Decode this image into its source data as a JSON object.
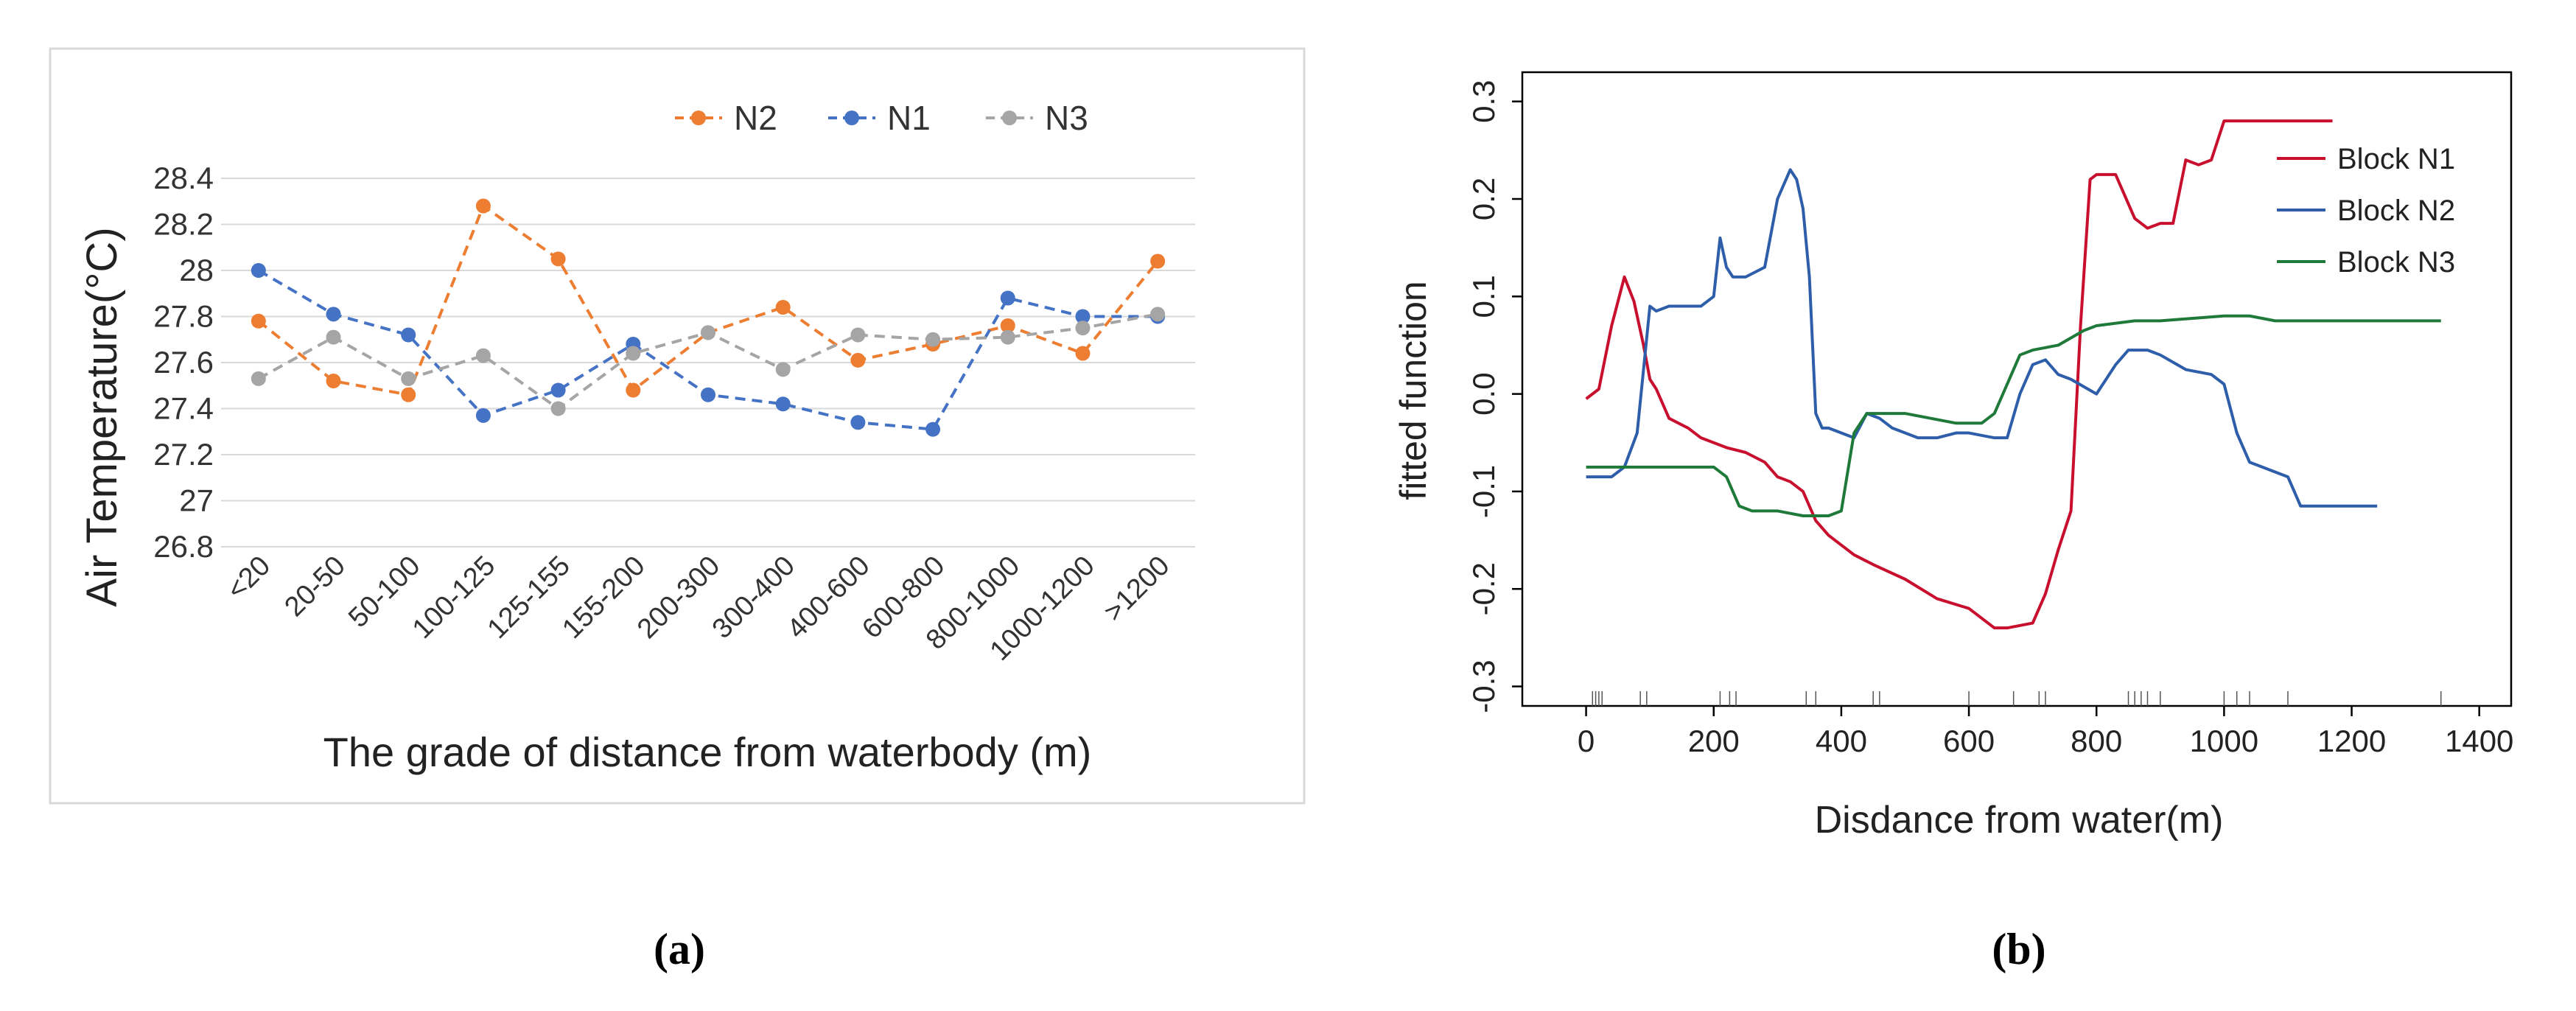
{
  "chart_data": [
    {
      "type": "line",
      "panel_label": "(a)",
      "title": "",
      "xlabel": "The grade of distance from waterbody (m)",
      "ylabel": "Air Temperature(°C)",
      "categories": [
        "<20",
        "20-50",
        "50-100",
        "100-125",
        "125-155",
        "155-200",
        "200-300",
        "300-400",
        "400-600",
        "600-800",
        "800-1000",
        "1000-1200",
        ">1200"
      ],
      "ylim": [
        26.8,
        28.4
      ],
      "yticks": [
        "26.8",
        "27",
        "27.2",
        "27.4",
        "27.6",
        "27.8",
        "28",
        "28.2",
        "28.4"
      ],
      "grid": true,
      "legend_position": "top-right",
      "series": [
        {
          "name": "N2",
          "color": "#ED7D31",
          "values": [
            27.78,
            27.52,
            27.46,
            28.28,
            28.05,
            27.48,
            27.73,
            27.84,
            27.61,
            27.68,
            27.76,
            27.64,
            28.04
          ]
        },
        {
          "name": "N1",
          "color": "#4472C4",
          "values": [
            28.0,
            27.81,
            27.72,
            27.37,
            27.48,
            27.68,
            27.46,
            27.42,
            27.34,
            27.31,
            27.88,
            27.8,
            27.8
          ]
        },
        {
          "name": "N3",
          "color": "#A5A5A5",
          "values": [
            27.53,
            27.71,
            27.53,
            27.63,
            27.4,
            27.64,
            27.73,
            27.57,
            27.72,
            27.7,
            27.71,
            27.75,
            27.81
          ]
        }
      ]
    },
    {
      "type": "line",
      "panel_label": "(b)",
      "title": "",
      "xlabel": "Disdance from water(m)",
      "ylabel": "fitted function",
      "xlim": [
        -100,
        1450
      ],
      "ylim": [
        -0.32,
        0.33
      ],
      "xticks": [
        "0",
        "200",
        "400",
        "600",
        "800",
        "1000",
        "1200",
        "1400"
      ],
      "yticks": [
        "-0.3",
        "-0.2",
        "-0.1",
        "0.0",
        "0.1",
        "0.2",
        "0.3"
      ],
      "legend_position": "top-right",
      "rug_x": [
        10,
        15,
        20,
        25,
        85,
        95,
        210,
        225,
        235,
        345,
        360,
        450,
        460,
        600,
        670,
        710,
        720,
        850,
        860,
        870,
        880,
        900,
        1000,
        1020,
        1040,
        1100,
        1340
      ],
      "series": [
        {
          "name": "Block N1",
          "color": "#C8102E",
          "x": [
            0,
            20,
            40,
            60,
            75,
            90,
            100,
            110,
            130,
            160,
            180,
            200,
            220,
            250,
            280,
            300,
            320,
            340,
            360,
            380,
            400,
            420,
            450,
            500,
            550,
            600,
            640,
            660,
            700,
            720,
            740,
            760,
            775,
            790,
            800,
            830,
            860,
            880,
            900,
            920,
            940,
            960,
            980,
            1000,
            1010,
            1020,
            1100,
            1170
          ],
          "y": [
            -0.005,
            0.005,
            0.07,
            0.12,
            0.095,
            0.05,
            0.015,
            0.005,
            -0.025,
            -0.035,
            -0.045,
            -0.05,
            -0.055,
            -0.06,
            -0.07,
            -0.085,
            -0.09,
            -0.1,
            -0.13,
            -0.145,
            -0.155,
            -0.165,
            -0.175,
            -0.19,
            -0.21,
            -0.22,
            -0.24,
            -0.24,
            -0.235,
            -0.205,
            -0.16,
            -0.12,
            0.07,
            0.22,
            0.225,
            0.225,
            0.18,
            0.17,
            0.175,
            0.175,
            0.24,
            0.235,
            0.24,
            0.28,
            0.28,
            0.28,
            0.28,
            0.28
          ]
        },
        {
          "name": "Block N2",
          "color": "#2E5EAA",
          "x": [
            0,
            40,
            60,
            80,
            100,
            110,
            130,
            150,
            180,
            200,
            210,
            220,
            230,
            250,
            280,
            300,
            320,
            330,
            340,
            350,
            360,
            370,
            380,
            400,
            420,
            440,
            460,
            480,
            500,
            520,
            550,
            580,
            600,
            640,
            660,
            680,
            700,
            720,
            740,
            760,
            800,
            830,
            850,
            880,
            900,
            940,
            980,
            1000,
            1020,
            1040,
            1080,
            1100,
            1120,
            1160,
            1240
          ],
          "y": [
            -0.085,
            -0.085,
            -0.075,
            -0.04,
            0.09,
            0.085,
            0.09,
            0.09,
            0.09,
            0.1,
            0.16,
            0.13,
            0.12,
            0.12,
            0.13,
            0.2,
            0.23,
            0.22,
            0.19,
            0.12,
            -0.02,
            -0.035,
            -0.035,
            -0.04,
            -0.045,
            -0.02,
            -0.025,
            -0.035,
            -0.04,
            -0.045,
            -0.045,
            -0.04,
            -0.04,
            -0.045,
            -0.045,
            0.0,
            0.03,
            0.035,
            0.02,
            0.015,
            0.0,
            0.03,
            0.045,
            0.045,
            0.04,
            0.025,
            0.02,
            0.01,
            -0.04,
            -0.07,
            -0.08,
            -0.085,
            -0.115,
            -0.115,
            -0.115
          ]
        },
        {
          "name": "Block N3",
          "color": "#1F7A3A",
          "x": [
            0,
            50,
            100,
            150,
            200,
            220,
            240,
            260,
            300,
            340,
            380,
            400,
            420,
            440,
            460,
            500,
            540,
            580,
            620,
            640,
            660,
            680,
            700,
            740,
            780,
            800,
            860,
            900,
            1000,
            1040,
            1080,
            1340
          ],
          "y": [
            -0.075,
            -0.075,
            -0.075,
            -0.075,
            -0.075,
            -0.085,
            -0.115,
            -0.12,
            -0.12,
            -0.125,
            -0.125,
            -0.12,
            -0.04,
            -0.02,
            -0.02,
            -0.02,
            -0.025,
            -0.03,
            -0.03,
            -0.02,
            0.01,
            0.04,
            0.045,
            0.05,
            0.065,
            0.07,
            0.075,
            0.075,
            0.08,
            0.08,
            0.075,
            0.075
          ]
        }
      ]
    }
  ]
}
